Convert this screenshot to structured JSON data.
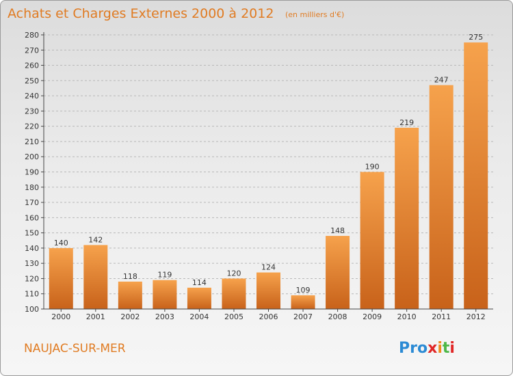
{
  "title": "Achats et Charges Externes 2000 à 2012",
  "unit": "(en milliers d'€)",
  "commune": "NAUJAC-SUR-MER",
  "logo": {
    "letters": [
      "P",
      "r",
      "o",
      "x",
      "i",
      "t",
      "i"
    ],
    "colors": [
      "#2a8ad4",
      "#2a8ad4",
      "#2a8ad4",
      "#e02626",
      "#f08c1c",
      "#4db848",
      "#e02626"
    ]
  },
  "colors": {
    "accent": "#e07b22",
    "bar_top": "#f6a24c",
    "bar_bottom": "#c8621a",
    "grid": "#b8b8b8",
    "axis": "#444444"
  },
  "chart_data": {
    "type": "bar",
    "title": "Achats et Charges Externes 2000 à 2012",
    "subtitle": "(en milliers d'€)",
    "xlabel": "",
    "ylabel": "",
    "categories": [
      "2000",
      "2001",
      "2002",
      "2003",
      "2004",
      "2005",
      "2006",
      "2007",
      "2008",
      "2009",
      "2010",
      "2011",
      "2012"
    ],
    "values": [
      140,
      142,
      118,
      119,
      114,
      120,
      124,
      109,
      148,
      190,
      219,
      247,
      275
    ],
    "ylim": [
      100,
      280
    ],
    "yticks": [
      100,
      110,
      120,
      130,
      140,
      150,
      160,
      170,
      180,
      190,
      200,
      210,
      220,
      230,
      240,
      250,
      260,
      270,
      280
    ],
    "grid": true,
    "legend": "none"
  }
}
